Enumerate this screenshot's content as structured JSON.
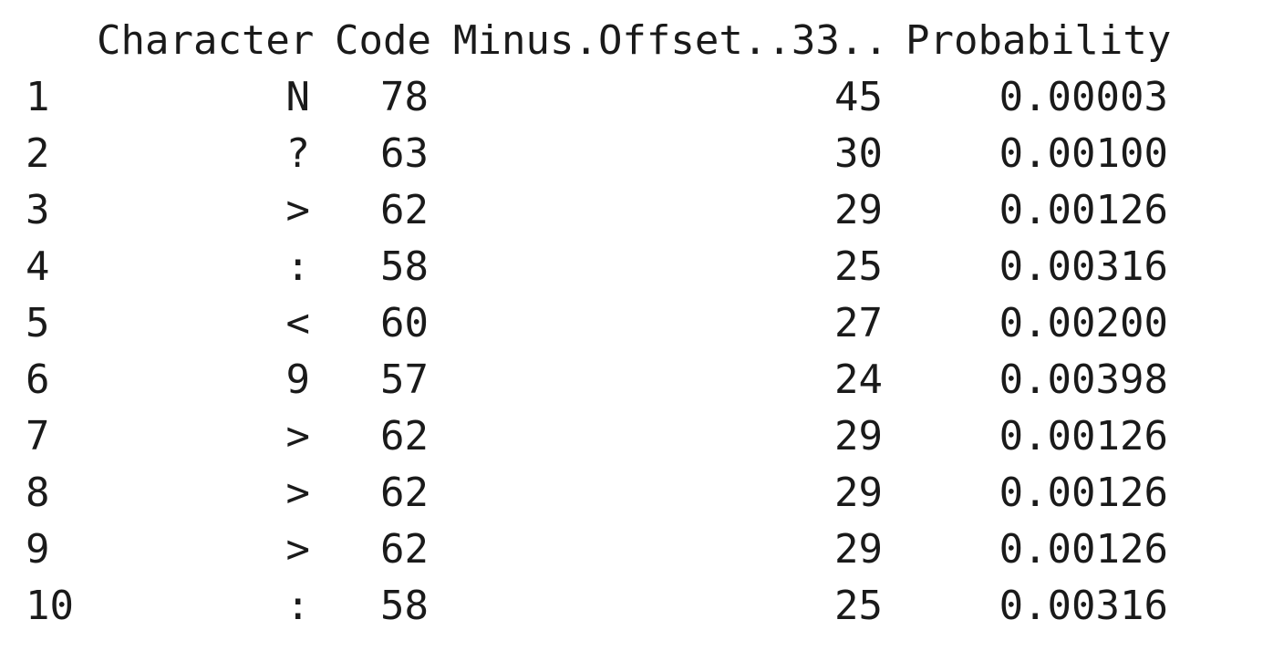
{
  "table": {
    "headers": {
      "character": "Character",
      "code": "Code",
      "minus_offset": "Minus.Offset..33..",
      "probability": "Probability"
    },
    "rows": [
      {
        "index": "1",
        "character": "N",
        "code": "78",
        "minus_offset": "45",
        "probability": "0.00003"
      },
      {
        "index": "2",
        "character": "?",
        "code": "63",
        "minus_offset": "30",
        "probability": "0.00100"
      },
      {
        "index": "3",
        "character": ">",
        "code": "62",
        "minus_offset": "29",
        "probability": "0.00126"
      },
      {
        "index": "4",
        "character": ":",
        "code": "58",
        "minus_offset": "25",
        "probability": "0.00316"
      },
      {
        "index": "5",
        "character": "<",
        "code": "60",
        "minus_offset": "27",
        "probability": "0.00200"
      },
      {
        "index": "6",
        "character": "9",
        "code": "57",
        "minus_offset": "24",
        "probability": "0.00398"
      },
      {
        "index": "7",
        "character": ">",
        "code": "62",
        "minus_offset": "29",
        "probability": "0.00126"
      },
      {
        "index": "8",
        "character": ">",
        "code": "62",
        "minus_offset": "29",
        "probability": "0.00126"
      },
      {
        "index": "9",
        "character": ">",
        "code": "62",
        "minus_offset": "29",
        "probability": "0.00126"
      },
      {
        "index": "10",
        "character": ":",
        "code": "58",
        "minus_offset": "25",
        "probability": "0.00316"
      }
    ]
  }
}
